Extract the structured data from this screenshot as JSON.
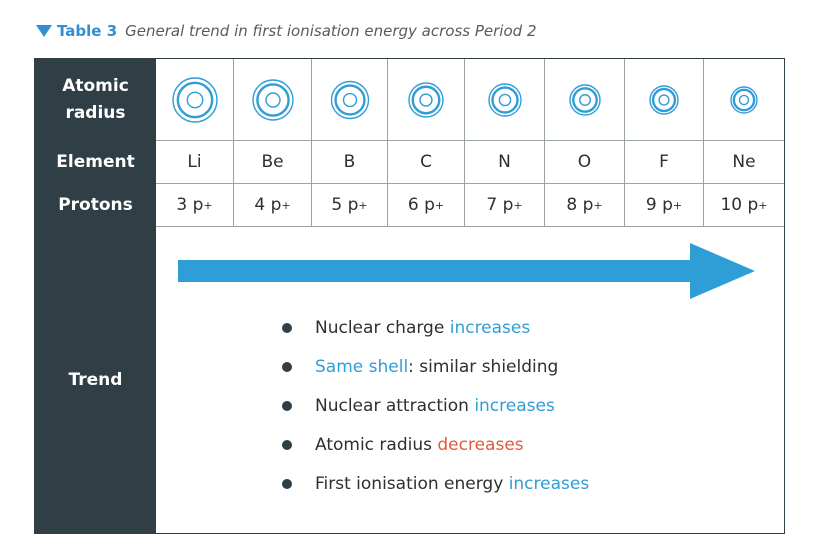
{
  "caption": {
    "label": "Table 3",
    "title": "General trend in first ionisation energy across Period 2"
  },
  "rows": {
    "radius_label_line1": "Atomic",
    "radius_label_line2": "radius",
    "element_label": "Element",
    "protons_label": "Protons",
    "trend_label": "Trend"
  },
  "elements": [
    {
      "symbol": "Li",
      "protons": "3 p",
      "outer_r": 22
    },
    {
      "symbol": "Be",
      "protons": "4 p",
      "outer_r": 20
    },
    {
      "symbol": "B",
      "protons": "5 p",
      "outer_r": 18.5
    },
    {
      "symbol": "C",
      "protons": "6 p",
      "outer_r": 17
    },
    {
      "symbol": "N",
      "protons": "7 p",
      "outer_r": 16
    },
    {
      "symbol": "O",
      "protons": "8 p",
      "outer_r": 15
    },
    {
      "symbol": "F",
      "protons": "9 p",
      "outer_r": 14
    },
    {
      "symbol": "Ne",
      "protons": "10 p",
      "outer_r": 13
    }
  ],
  "proton_superscript": "+",
  "trend": {
    "b1": {
      "pre": "Nuclear charge ",
      "hl": "increases",
      "post": ""
    },
    "b2": {
      "pre": "",
      "hl": "Same shell",
      "post": ": similar shielding"
    },
    "b3": {
      "pre": "Nuclear attraction ",
      "hl": "increases",
      "post": ""
    },
    "b4": {
      "pre": "Atomic radius ",
      "hl": "decreases",
      "post": ""
    },
    "b5": {
      "pre": "First ionisation energy ",
      "hl": "increases",
      "post": ""
    }
  },
  "colors": {
    "accent_blue": "#2f9ed6",
    "highlight_red": "#e05a3a",
    "header_dark": "#2f3f45",
    "atom_stroke": "#2f9ed6"
  }
}
